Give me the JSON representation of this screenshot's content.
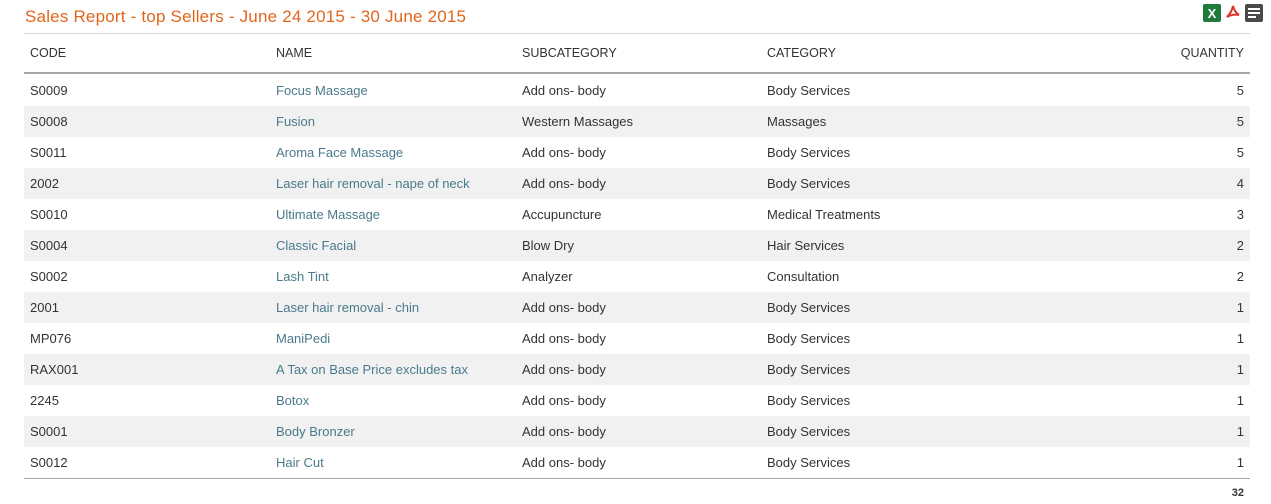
{
  "report": {
    "title": "Sales Report - top Sellers - June 24 2015 - 30 June 2015",
    "total": "32"
  },
  "exports": {
    "xls_label": "X",
    "pdf_icon": "pdf-icon",
    "text_icon": "text-report-icon",
    "colors": {
      "xls": "#1f7a3c",
      "pdf": "#d9342b",
      "text": "#4a4a4a",
      "title": "#e0661c",
      "link": "#4a7a8c"
    }
  },
  "table": {
    "headers": {
      "code": "CODE",
      "name": "NAME",
      "subcategory": "SUBCATEGORY",
      "category": "CATEGORY",
      "quantity": "QUANTITY"
    },
    "rows": [
      {
        "code": "S0009",
        "name": "Focus Massage",
        "subcategory": "Add ons- body",
        "category": "Body Services",
        "quantity": "5"
      },
      {
        "code": "S0008",
        "name": "Fusion",
        "subcategory": "Western Massages",
        "category": "Massages",
        "quantity": "5"
      },
      {
        "code": "S0011",
        "name": "Aroma Face Massage",
        "subcategory": "Add ons- body",
        "category": "Body Services",
        "quantity": "5"
      },
      {
        "code": "2002",
        "name": "Laser hair removal - nape of neck",
        "subcategory": "Add ons- body",
        "category": "Body Services",
        "quantity": "4"
      },
      {
        "code": "S0010",
        "name": "Ultimate Massage",
        "subcategory": "Accupuncture",
        "category": "Medical Treatments",
        "quantity": "3"
      },
      {
        "code": "S0004",
        "name": "Classic Facial",
        "subcategory": "Blow Dry",
        "category": "Hair Services",
        "quantity": "2"
      },
      {
        "code": "S0002",
        "name": "Lash Tint",
        "subcategory": "Analyzer",
        "category": "Consultation",
        "quantity": "2"
      },
      {
        "code": "2001",
        "name": "Laser hair removal - chin",
        "subcategory": "Add ons- body",
        "category": "Body Services",
        "quantity": "1"
      },
      {
        "code": "MP076",
        "name": "ManiPedi",
        "subcategory": "Add ons- body",
        "category": "Body Services",
        "quantity": "1"
      },
      {
        "code": "RAX001",
        "name": "A Tax on Base Price excludes tax",
        "subcategory": "Add ons- body",
        "category": "Body Services",
        "quantity": "1"
      },
      {
        "code": "2245",
        "name": "Botox",
        "subcategory": "Add ons- body",
        "category": "Body Services",
        "quantity": "1"
      },
      {
        "code": "S0001",
        "name": "Body Bronzer",
        "subcategory": "Add ons- body",
        "category": "Body Services",
        "quantity": "1"
      },
      {
        "code": "S0012",
        "name": "Hair Cut",
        "subcategory": "Add ons- body",
        "category": "Body Services",
        "quantity": "1"
      }
    ]
  }
}
